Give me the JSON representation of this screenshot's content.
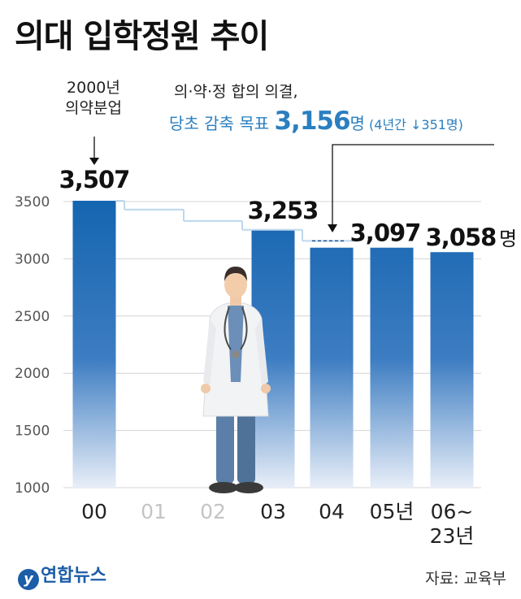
{
  "title": "의대 입학정원 추이",
  "annotations": {
    "year2000_line1": "2000년",
    "year2000_line2": "의약분업",
    "agreement": "의·약·정 합의 의결,",
    "target_lead": "당초 감축 목표 ",
    "target_value": "3,156",
    "target_unit": "명",
    "target_note": " (4년간 ↓351명)"
  },
  "unit_label": "명",
  "source": "자료: 교육부",
  "logo": {
    "mark": "y",
    "text": "연합뉴스"
  },
  "colors": {
    "bar_top": "#1565b0",
    "bar_bottom": "#e8eef8",
    "step_line": "#bcd8ee",
    "accent": "#2a7fc0"
  },
  "chart_data": {
    "type": "bar",
    "title": "의대 입학정원 추이",
    "xlabel": "",
    "ylabel": "",
    "ylim": [
      1000,
      3500
    ],
    "yticks": [
      "1000",
      "1500",
      "2000",
      "2500",
      "3000",
      "3500"
    ],
    "categories": [
      "00",
      "01",
      "02",
      "03",
      "04",
      "05년",
      "06~\n23년"
    ],
    "category_dim": [
      false,
      true,
      true,
      false,
      false,
      false,
      false
    ],
    "values": [
      3507,
      null,
      null,
      3253,
      3097,
      3097,
      3058
    ],
    "data_labels": [
      "3,507",
      "",
      "",
      "3,253",
      "3,097",
      "",
      "3,058"
    ],
    "step_line": [
      3507,
      3430,
      3330,
      3253,
      3156
    ],
    "target_value": 3156,
    "grid": true,
    "icons": [
      "doctor-illustration"
    ]
  }
}
